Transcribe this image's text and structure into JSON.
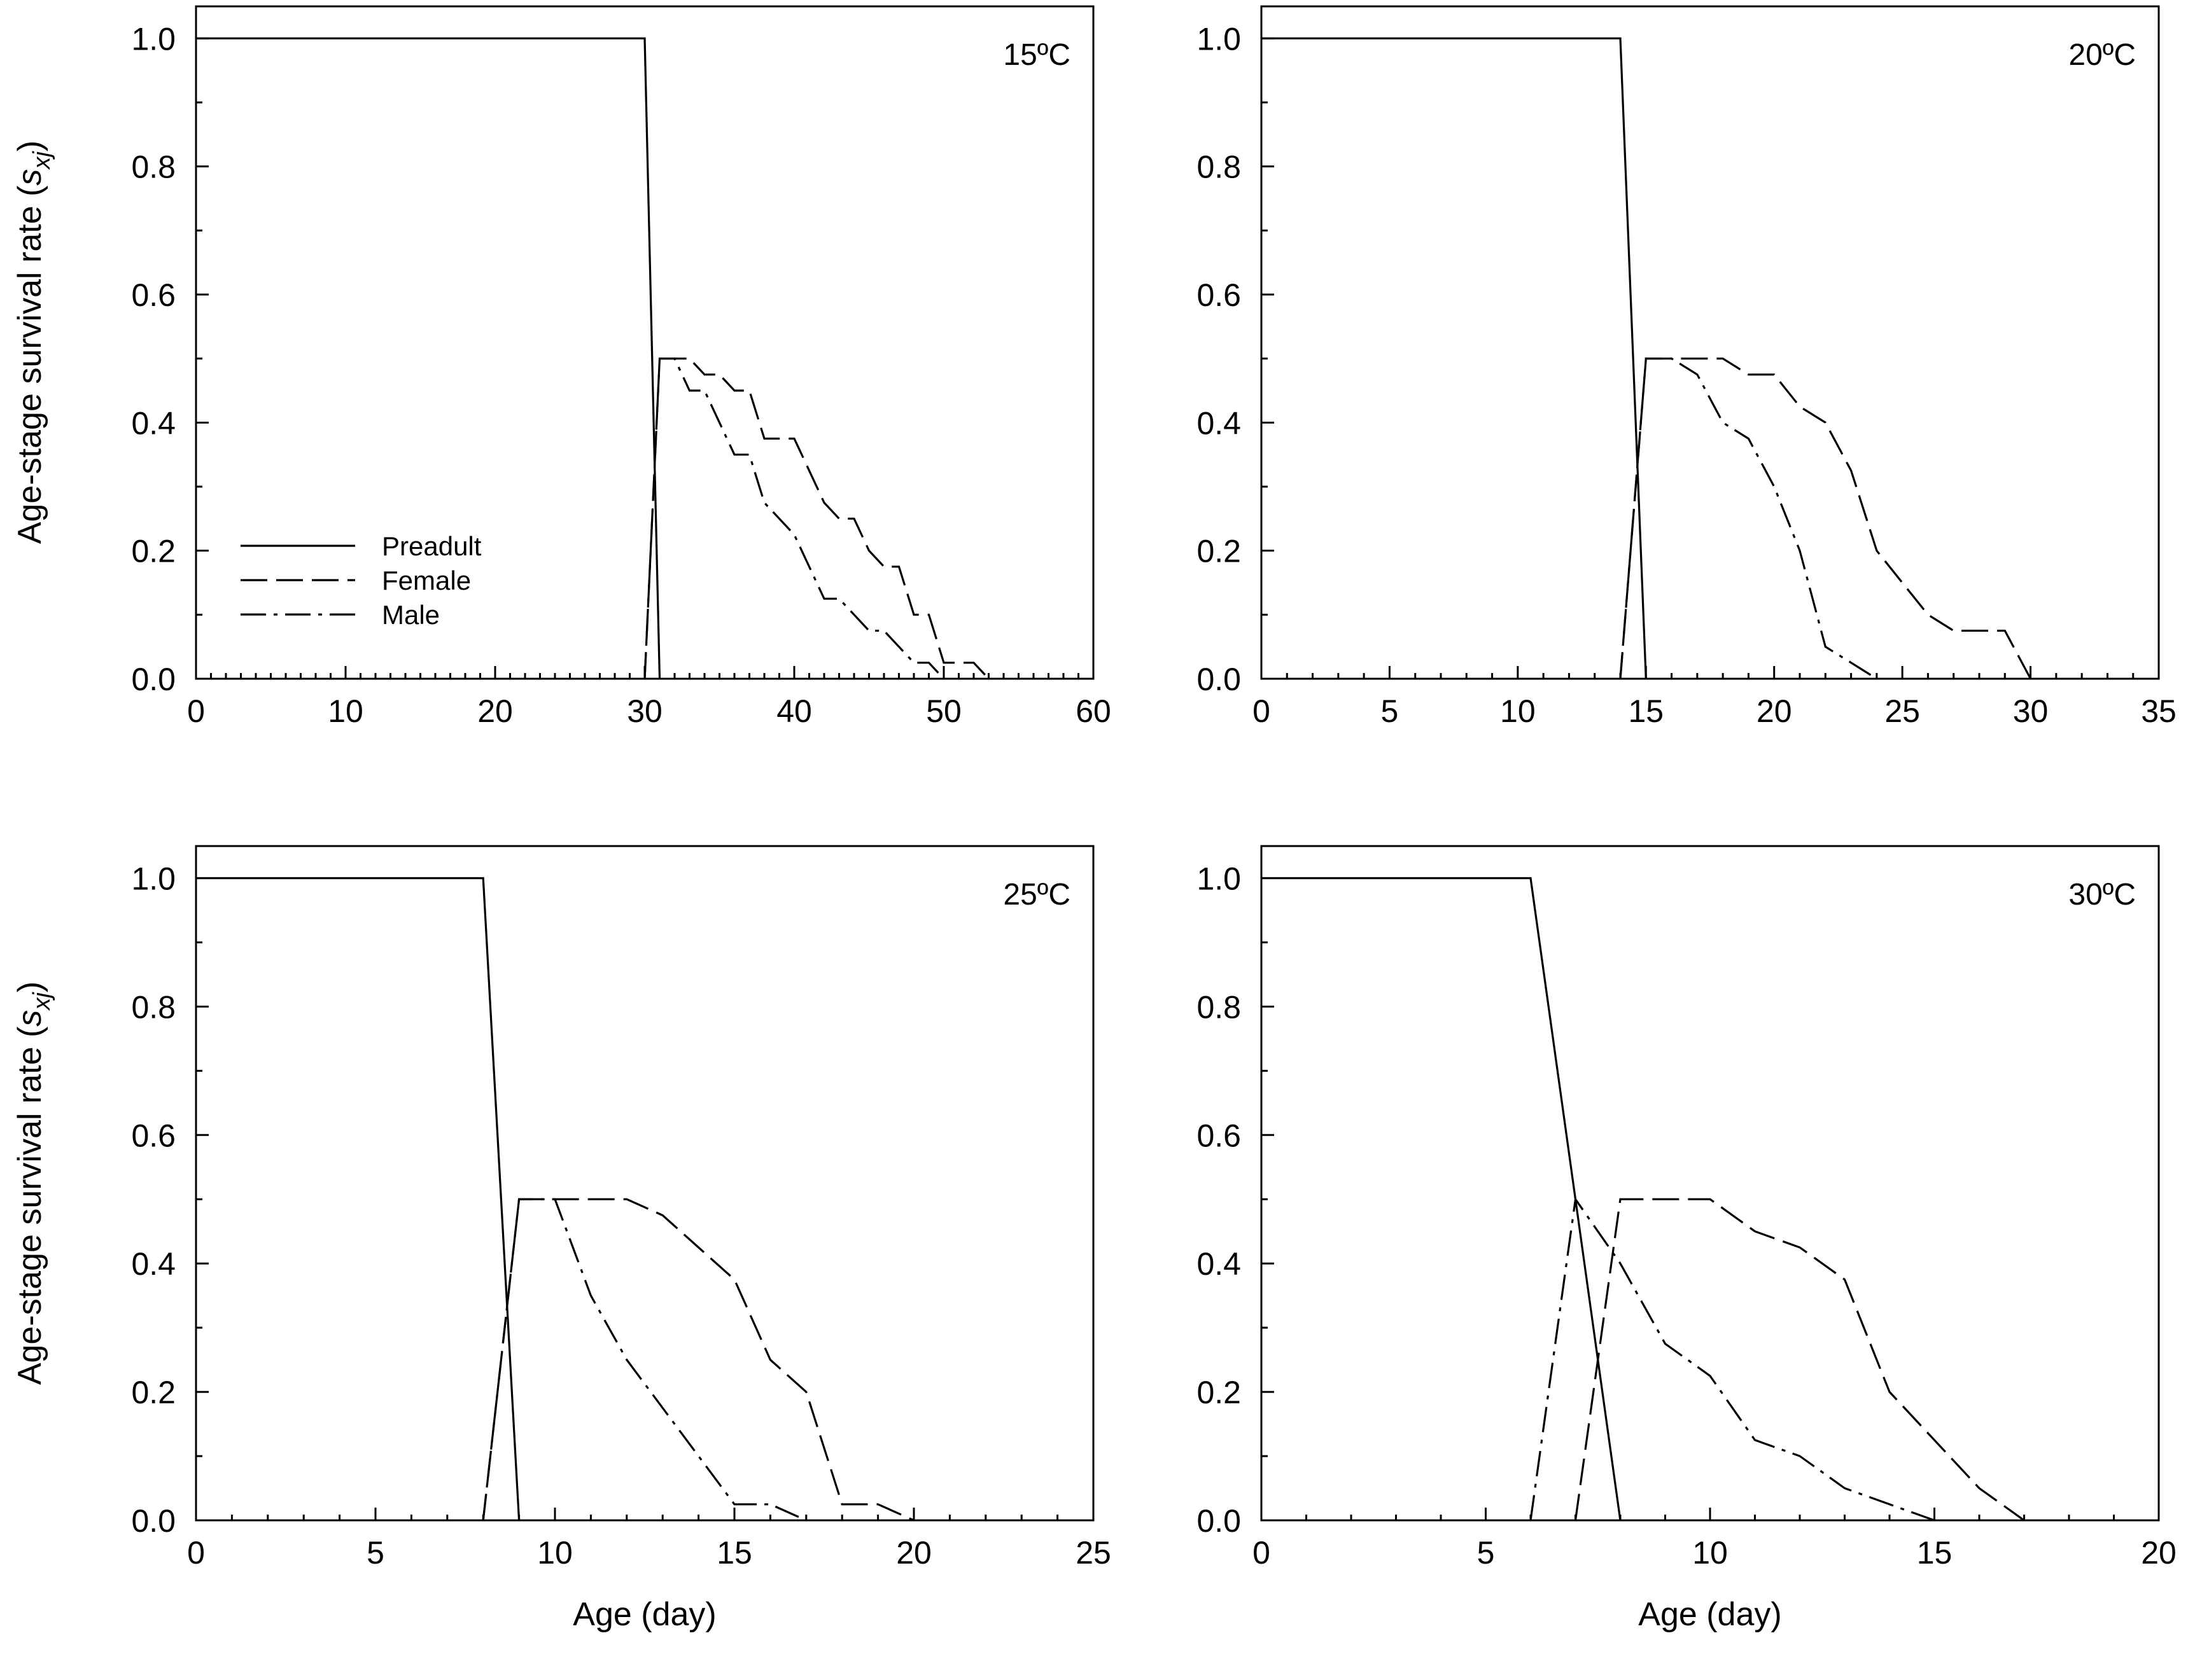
{
  "figure": {
    "y_axis_title": "Age-stage survival rate (",
    "y_axis_symbol": "s",
    "y_axis_subscript": "xj",
    "y_axis_close": ")",
    "x_axis_title": "Age (day)",
    "legend": [
      "Preadult",
      "Female",
      "Male"
    ]
  },
  "chart_data": [
    {
      "type": "line",
      "panel": "top-left",
      "label": "15ºC",
      "xlabel": "",
      "ylabel": "Age-stage survival rate (sxj)",
      "xlim": [
        0,
        60
      ],
      "ylim": [
        0,
        1.05
      ],
      "xticks": [
        0,
        10,
        20,
        30,
        40,
        50,
        60
      ],
      "xtick_labels": [
        "0",
        "10",
        "20",
        "30",
        "40",
        "50",
        "60"
      ],
      "xminor": 1,
      "yticks": [
        0,
        0.2,
        0.4,
        0.6,
        0.8,
        1.0
      ],
      "ytick_labels": [
        "0.0",
        "0.2",
        "0.4",
        "0.6",
        "0.8",
        "1.0"
      ],
      "legend_position": "lower-left",
      "series": [
        {
          "name": "Preadult",
          "style": "solid",
          "x": [
            0,
            30,
            31
          ],
          "y": [
            1.0,
            1.0,
            0.0
          ]
        },
        {
          "name": "Female",
          "style": "dashed",
          "x": [
            30,
            31,
            32,
            33,
            34,
            35,
            36,
            37,
            38,
            39,
            40,
            41,
            42,
            43,
            44,
            45,
            46,
            47,
            48,
            49,
            50,
            51,
            52,
            53
          ],
          "y": [
            0.0,
            0.5,
            0.5,
            0.5,
            0.475,
            0.475,
            0.45,
            0.45,
            0.375,
            0.375,
            0.375,
            0.325,
            0.275,
            0.25,
            0.25,
            0.2,
            0.175,
            0.175,
            0.1,
            0.1,
            0.025,
            0.025,
            0.025,
            0.0
          ]
        },
        {
          "name": "Male",
          "style": "dashdot",
          "x": [
            30,
            31,
            32,
            33,
            34,
            35,
            36,
            37,
            38,
            39,
            40,
            41,
            42,
            43,
            44,
            45,
            46,
            47,
            48,
            49,
            50
          ],
          "y": [
            0.0,
            0.5,
            0.5,
            0.45,
            0.45,
            0.4,
            0.35,
            0.35,
            0.275,
            0.25,
            0.225,
            0.175,
            0.125,
            0.125,
            0.1,
            0.075,
            0.075,
            0.05,
            0.025,
            0.025,
            0.0
          ]
        }
      ]
    },
    {
      "type": "line",
      "panel": "top-right",
      "label": "20ºC",
      "xlabel": "",
      "ylabel": "",
      "xlim": [
        0,
        35
      ],
      "ylim": [
        0,
        1.05
      ],
      "xticks": [
        0,
        5,
        10,
        15,
        20,
        25,
        30,
        35
      ],
      "xtick_labels": [
        "0",
        "5",
        "10",
        "15",
        "20",
        "25",
        "30",
        "35"
      ],
      "xminor": 1,
      "yticks": [
        0,
        0.2,
        0.4,
        0.6,
        0.8,
        1.0
      ],
      "ytick_labels": [
        "0.0",
        "0.2",
        "0.4",
        "0.6",
        "0.8",
        "1.0"
      ],
      "series": [
        {
          "name": "Preadult",
          "style": "solid",
          "x": [
            0,
            14,
            15
          ],
          "y": [
            1.0,
            1.0,
            0.0
          ]
        },
        {
          "name": "Female",
          "style": "dashed",
          "x": [
            14,
            15,
            16,
            17,
            18,
            19,
            20,
            21,
            22,
            23,
            24,
            25,
            26,
            27,
            28,
            29,
            30
          ],
          "y": [
            0.0,
            0.5,
            0.5,
            0.5,
            0.5,
            0.475,
            0.475,
            0.425,
            0.4,
            0.325,
            0.2,
            0.15,
            0.1,
            0.075,
            0.075,
            0.075,
            0.0
          ]
        },
        {
          "name": "Male",
          "style": "dashdot",
          "x": [
            14,
            15,
            16,
            17,
            18,
            19,
            20,
            21,
            22,
            23,
            24
          ],
          "y": [
            0.0,
            0.5,
            0.5,
            0.475,
            0.4,
            0.375,
            0.3,
            0.2,
            0.05,
            0.025,
            0.0
          ]
        }
      ]
    },
    {
      "type": "line",
      "panel": "bottom-left",
      "label": "25ºC",
      "xlabel": "Age (day)",
      "ylabel": "Age-stage survival rate (sxj)",
      "xlim": [
        0,
        25
      ],
      "ylim": [
        0,
        1.05
      ],
      "xticks": [
        0,
        5,
        10,
        15,
        20,
        25
      ],
      "xtick_labels": [
        "0",
        "5",
        "10",
        "15",
        "20",
        "25"
      ],
      "xminor": 1,
      "yticks": [
        0,
        0.2,
        0.4,
        0.6,
        0.8,
        1.0
      ],
      "ytick_labels": [
        "0.0",
        "0.2",
        "0.4",
        "0.6",
        "0.8",
        "1.0"
      ],
      "series": [
        {
          "name": "Preadult",
          "style": "solid",
          "x": [
            0,
            8,
            9
          ],
          "y": [
            1.0,
            1.0,
            0.0
          ]
        },
        {
          "name": "Female",
          "style": "dashed",
          "x": [
            8,
            9,
            10,
            11,
            12,
            13,
            14,
            15,
            16,
            17,
            18,
            19,
            20
          ],
          "y": [
            0.0,
            0.5,
            0.5,
            0.5,
            0.5,
            0.475,
            0.425,
            0.375,
            0.25,
            0.2,
            0.025,
            0.025,
            0.0
          ]
        },
        {
          "name": "Male",
          "style": "dashdot",
          "x": [
            8,
            9,
            10,
            11,
            12,
            13,
            14,
            15,
            16,
            17
          ],
          "y": [
            0.0,
            0.5,
            0.5,
            0.35,
            0.25,
            0.175,
            0.1,
            0.025,
            0.025,
            0.0
          ]
        }
      ]
    },
    {
      "type": "line",
      "panel": "bottom-right",
      "label": "30ºC",
      "xlabel": "Age (day)",
      "ylabel": "",
      "xlim": [
        0,
        20
      ],
      "ylim": [
        0,
        1.05
      ],
      "xticks": [
        0,
        5,
        10,
        15,
        20
      ],
      "xtick_labels": [
        "0",
        "5",
        "10",
        "15",
        "20"
      ],
      "xminor": 1,
      "yticks": [
        0,
        0.2,
        0.4,
        0.6,
        0.8,
        1.0
      ],
      "ytick_labels": [
        "0.0",
        "0.2",
        "0.4",
        "0.6",
        "0.8",
        "1.0"
      ],
      "series": [
        {
          "name": "Preadult",
          "style": "solid",
          "x": [
            0,
            6,
            8
          ],
          "y": [
            1.0,
            1.0,
            0.0
          ]
        },
        {
          "name": "Female",
          "style": "dashed",
          "x": [
            7,
            8,
            9,
            10,
            11,
            12,
            13,
            14,
            15,
            16,
            17
          ],
          "y": [
            0.0,
            0.5,
            0.5,
            0.5,
            0.45,
            0.425,
            0.375,
            0.2,
            0.125,
            0.05,
            0.0
          ]
        },
        {
          "name": "Male",
          "style": "dashdot",
          "x": [
            6,
            7,
            8,
            9,
            10,
            11,
            12,
            13,
            14,
            15
          ],
          "y": [
            0.0,
            0.5,
            0.4,
            0.275,
            0.225,
            0.125,
            0.1,
            0.05,
            0.025,
            0.0
          ]
        }
      ]
    }
  ]
}
